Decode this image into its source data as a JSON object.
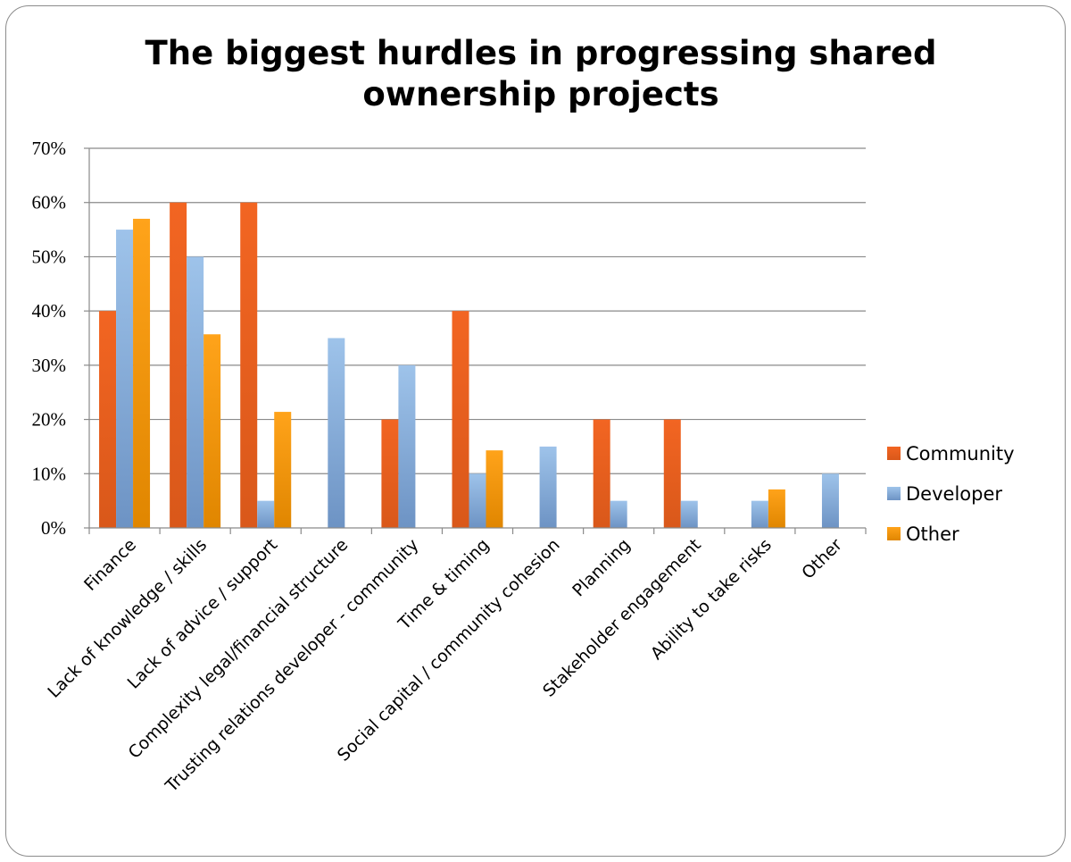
{
  "chart_data": {
    "type": "bar",
    "title_lines": [
      "The biggest hurdles in progressing shared",
      "ownership projects"
    ],
    "xlabel": "",
    "ylabel": "",
    "ylim": [
      0,
      0.7
    ],
    "yticks": [
      "0%",
      "10%",
      "20%",
      "30%",
      "40%",
      "50%",
      "60%",
      "70%"
    ],
    "grid": true,
    "legend_position": "right",
    "categories": [
      "Finance",
      "Lack of knowledge / skills",
      "Lack of advice / support",
      "Complexity legal/financial structure",
      "Trusting relations developer - community",
      "Time & timing",
      "Social capital / community cohesion",
      "Planning",
      "Stakeholder engagement",
      "Ability to take risks",
      "Other"
    ],
    "series": [
      {
        "name": "Community",
        "color_top": "#f26522",
        "color_bottom": "#d9581a",
        "values": [
          0.4,
          0.6,
          0.6,
          0,
          0.2,
          0.4,
          0,
          0.2,
          0.2,
          0,
          0
        ]
      },
      {
        "name": "Developer",
        "color_top": "#9ec3ea",
        "color_bottom": "#6d93c4",
        "values": [
          0.55,
          0.5,
          0.05,
          0.35,
          0.3,
          0.1,
          0.15,
          0.05,
          0.05,
          0.05,
          0.1
        ]
      },
      {
        "name": "Other",
        "color_top": "#ffa31a",
        "color_bottom": "#e08600",
        "values": [
          0.57,
          0.357,
          0.214,
          0,
          0,
          0.143,
          0,
          0,
          0,
          0.071,
          0
        ]
      }
    ]
  }
}
